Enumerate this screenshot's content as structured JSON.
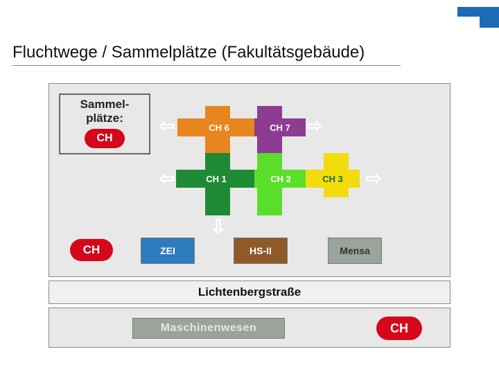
{
  "title": "Fluchtwege / Sammelplätze (Fakultätsgebäude)",
  "logo_color": "#1b6bb5",
  "legend": {
    "line1": "Sammel-",
    "line2": "plätze:",
    "badge": "CH"
  },
  "colors": {
    "panel_bg": "#e8e8e8",
    "ch_red": "#d4071b",
    "orange": "#e7861f",
    "purple": "#8e3c92",
    "darkgreen": "#1f8a36",
    "brightgreen": "#5ade2a",
    "yellow": "#f3dc0e",
    "zei_blue": "#2e7bbd",
    "hs2_brown": "#8f5a2a",
    "mensa_gray": "#9aa39c"
  },
  "blocks": {
    "ch6": {
      "label": "CH 6",
      "color": "#e7861f"
    },
    "ch7": {
      "label": "CH 7",
      "color": "#8e3c92"
    },
    "ch1": {
      "label": "CH 1",
      "color": "#1f8a36"
    },
    "ch2": {
      "label": "CH 2",
      "color": "#5ade2a"
    },
    "ch3": {
      "label": "CH 3",
      "color": "#f3dc0e"
    }
  },
  "row": {
    "ch_badge": "CH",
    "zei": "ZEI",
    "hs2": "HS-II",
    "mensa": "Mensa"
  },
  "street": "Lichtenbergstraße",
  "mw": {
    "label": "Maschinenwesen",
    "badge": "CH"
  },
  "arrows": {
    "left": "⇦",
    "right": "⇨",
    "down": "⇩"
  }
}
